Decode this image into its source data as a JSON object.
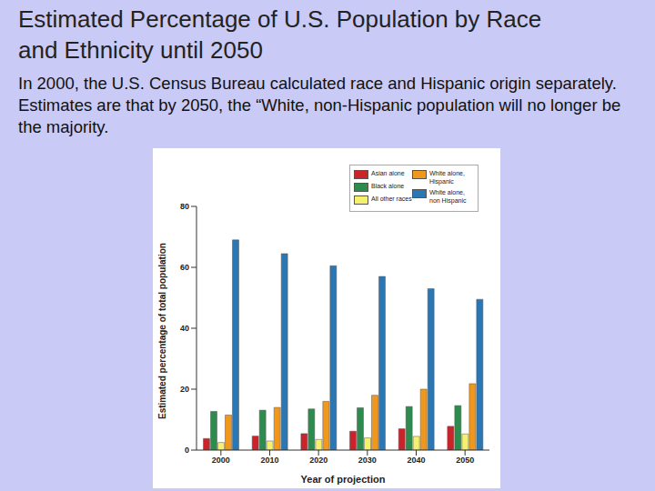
{
  "title": "Estimated Percentage of U.S. Population by Race and Ethnicity until 2050",
  "subtitle": "In 2000, the U.S. Census Bureau calculated race and Hispanic origin separately. Estimates are that by 2050, the “White, non-Hispanic population will no longer be the majority.",
  "chart_data": {
    "type": "bar",
    "x_label": "Year of projection",
    "y_label": "Estimated percentage of total population",
    "categories": [
      "2000",
      "2010",
      "2020",
      "2030",
      "2040",
      "2050"
    ],
    "series": [
      {
        "name": "Asian alone",
        "color": "#cc2229",
        "values": [
          3.8,
          4.6,
          5.4,
          6.2,
          7.0,
          7.8
        ]
      },
      {
        "name": "Black alone",
        "color": "#2e8b4e",
        "values": [
          12.7,
          13.1,
          13.5,
          13.9,
          14.3,
          14.6
        ]
      },
      {
        "name": "All other races",
        "color": "#f5f06e",
        "values": [
          2.5,
          3.0,
          3.5,
          4.0,
          4.5,
          5.3
        ]
      },
      {
        "name": "White alone, Hispanic",
        "color": "#f0981e",
        "values": [
          11.5,
          14.0,
          16.0,
          18.0,
          20.0,
          21.8
        ]
      },
      {
        "name": "White alone, non Hispanic",
        "color": "#2b77b3",
        "values": [
          69.0,
          64.5,
          60.5,
          57.0,
          53.0,
          49.5
        ]
      }
    ],
    "ylim": [
      0,
      80
    ],
    "yticks": [
      0,
      20,
      40,
      60,
      80
    ],
    "grid": false,
    "legend": "upper right"
  }
}
